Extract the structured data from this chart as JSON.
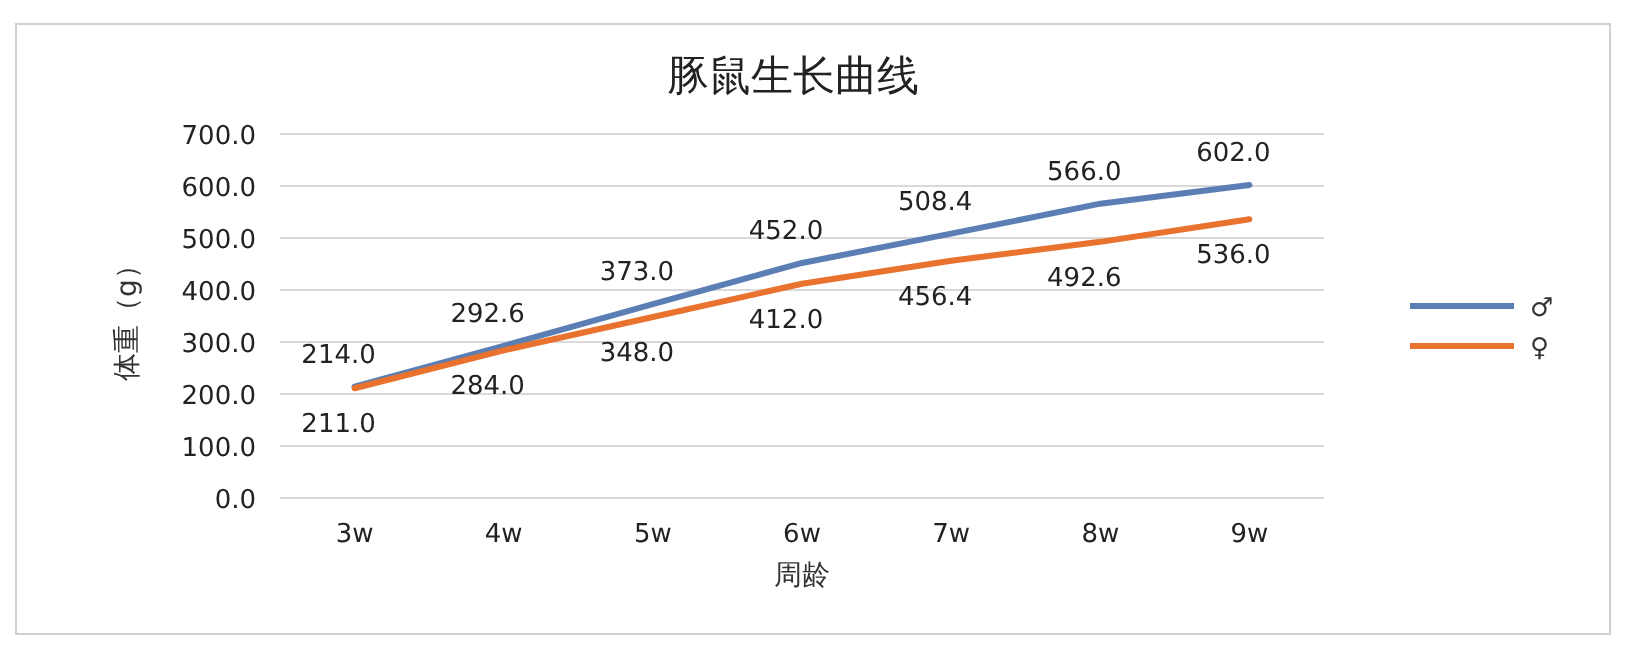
{
  "chart_data": {
    "type": "line",
    "title": "豚鼠生长曲线",
    "xlabel": "周龄",
    "ylabel": "体重（g）",
    "categories": [
      "3w",
      "4w",
      "5w",
      "6w",
      "7w",
      "8w",
      "9w"
    ],
    "series": [
      {
        "name": "♂",
        "color": "#5b7fb5",
        "values": [
          214.0,
          292.6,
          373.0,
          452.0,
          508.4,
          566.0,
          602.0
        ],
        "value_labels": [
          "214.0",
          "292.6",
          "373.0",
          "452.0",
          "508.4",
          "566.0",
          "602.0"
        ]
      },
      {
        "name": "♀",
        "color": "#e8722e",
        "values": [
          211.0,
          284.0,
          348.0,
          412.0,
          456.4,
          492.6,
          536.0
        ],
        "value_labels": [
          "211.0",
          "284.0",
          "348.0",
          "412.0",
          "456.4",
          "492.6",
          "536.0"
        ]
      }
    ],
    "ylim": [
      0,
      700
    ],
    "yticks": [
      {
        "value": 0,
        "label": "0.0"
      },
      {
        "value": 100,
        "label": "100.0"
      },
      {
        "value": 200,
        "label": "200.0"
      },
      {
        "value": 300,
        "label": "300.0"
      },
      {
        "value": 400,
        "label": "400.0"
      },
      {
        "value": 500,
        "label": "500.0"
      },
      {
        "value": 600,
        "label": "600.0"
      },
      {
        "value": 700,
        "label": "700.0"
      }
    ],
    "grid": "y",
    "legend": "right",
    "marker": "none",
    "line_style": "solid"
  }
}
